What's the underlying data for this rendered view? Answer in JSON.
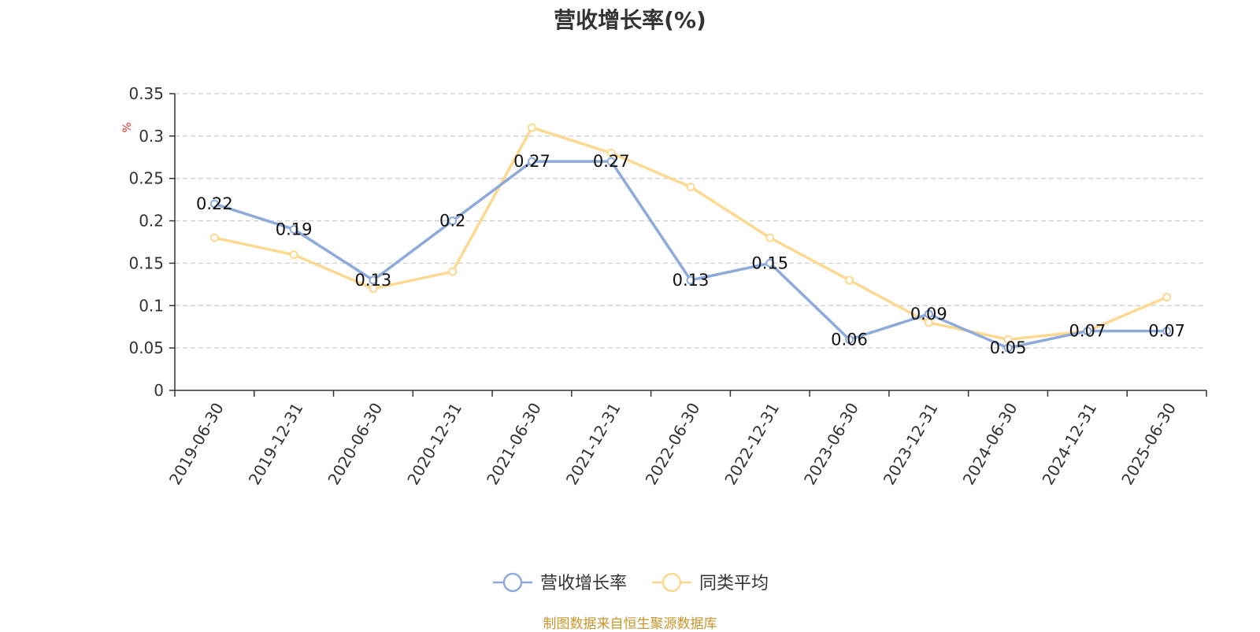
{
  "chart_data": {
    "type": "line",
    "title": "营收增长率(%)",
    "ylabel": "%",
    "xlabel": "",
    "categories": [
      "2019-06-30",
      "2019-12-31",
      "2020-06-30",
      "2020-12-31",
      "2021-06-30",
      "2021-12-31",
      "2022-06-30",
      "2022-12-31",
      "2023-06-30",
      "2023-12-31",
      "2024-06-30",
      "2024-12-31",
      "2025-06-30"
    ],
    "series": [
      {
        "name": "营收增长率",
        "color": "#8eaadb",
        "values": [
          0.22,
          0.19,
          0.13,
          0.2,
          0.27,
          0.27,
          0.13,
          0.15,
          0.06,
          0.09,
          0.05,
          0.07,
          0.07
        ],
        "data_labels": true
      },
      {
        "name": "同类平均",
        "color": "#fcd990",
        "values": [
          0.18,
          0.16,
          0.12,
          0.14,
          0.31,
          0.28,
          0.24,
          0.18,
          0.13,
          0.08,
          0.06,
          0.07,
          0.11
        ],
        "data_labels": false
      }
    ],
    "ylim": [
      0,
      0.35
    ],
    "yticks": [
      "0",
      "0.05",
      "0.1",
      "0.15",
      "0.2",
      "0.25",
      "0.3",
      "0.35"
    ],
    "grid": true,
    "legend": "bottom-center"
  },
  "source": "制图数据来自恒生聚源数据库"
}
